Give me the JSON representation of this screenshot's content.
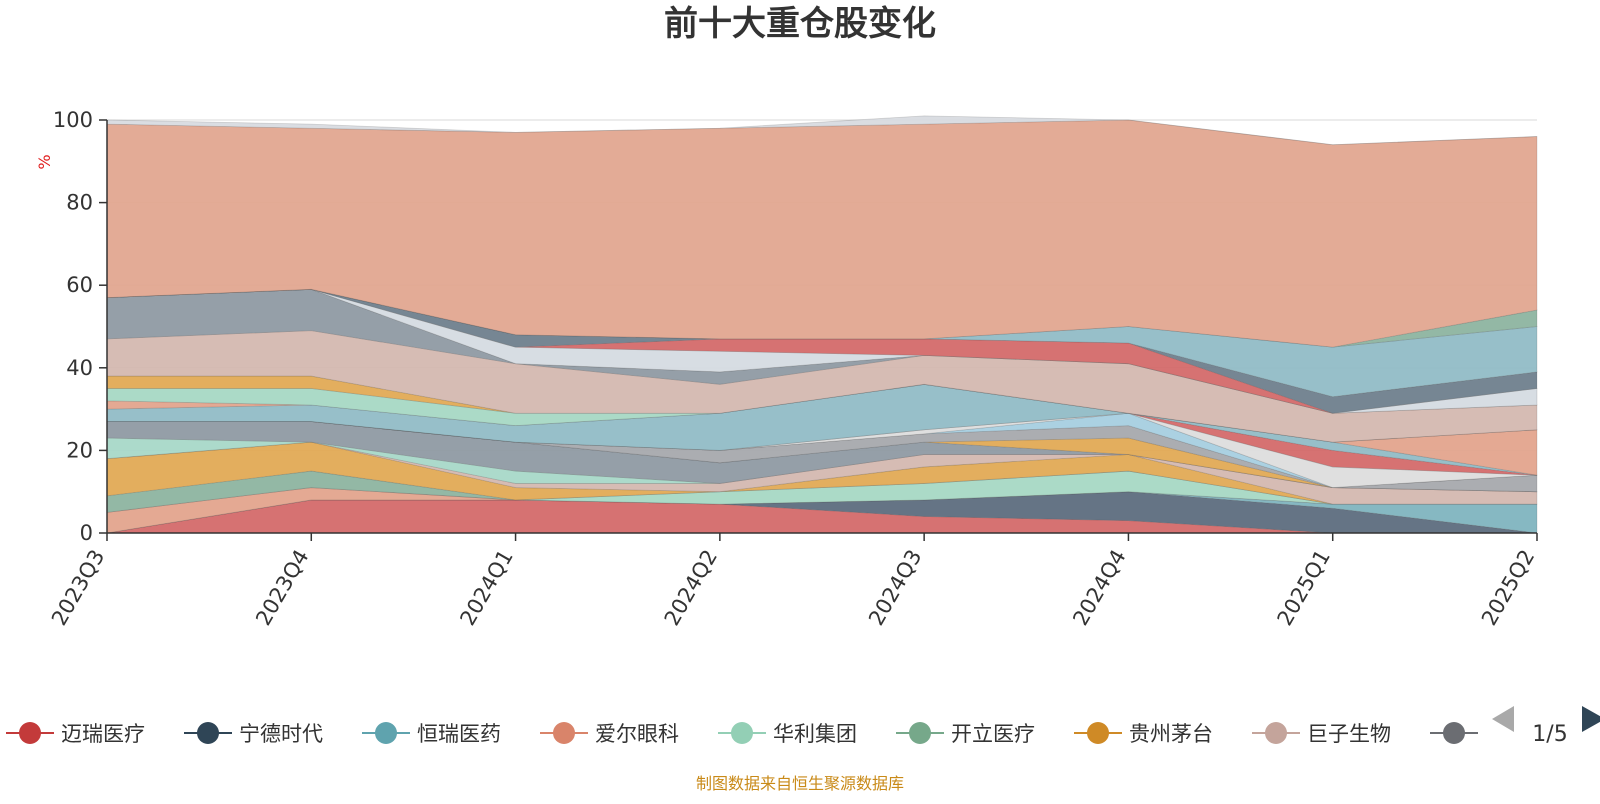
{
  "chart_data": {
    "type": "area",
    "title": "前十大重仓股变化",
    "ylabel": "%",
    "ylim": [
      0,
      100
    ],
    "yticks": [
      0,
      20,
      40,
      60,
      80,
      100
    ],
    "grid": true,
    "categories": [
      "2023Q3",
      "2023Q4",
      "2024Q1",
      "2024Q2",
      "2024Q3",
      "2024Q4",
      "2025Q1",
      "2025Q2"
    ],
    "series": [
      {
        "name": "迈瑞医疗",
        "color": "#d46a6a",
        "values": [
          0,
          8,
          8,
          7,
          4,
          3,
          0,
          0
        ]
      },
      {
        "name": "宁德时代",
        "color": "#5d6d7e",
        "values": [
          0,
          0,
          0,
          0,
          4,
          7,
          6,
          0
        ]
      },
      {
        "name": "恒瑞医药",
        "color": "#7fb4bf",
        "values": [
          0,
          0,
          0,
          0,
          0,
          0,
          1,
          7
        ]
      },
      {
        "name": "爱尔眼科",
        "color": "#e3a48d",
        "values": [
          5,
          3,
          0,
          0,
          0,
          0,
          0,
          0
        ]
      },
      {
        "name": "华利集团",
        "color": "#a7d8c4",
        "values": [
          0,
          0,
          0,
          3,
          4,
          5,
          0,
          0
        ]
      },
      {
        "name": "开立医疗",
        "color": "#8db4a0",
        "values": [
          4,
          4,
          0,
          0,
          0,
          0,
          0,
          0
        ]
      },
      {
        "name": "贵州茅台",
        "color": "#e2aa55",
        "values": [
          9,
          7,
          3,
          0,
          4,
          4,
          0,
          0
        ]
      },
      {
        "name": "巨子生物",
        "color": "#d4b8b0",
        "values": [
          0,
          0,
          1,
          2,
          3,
          0,
          4,
          3
        ]
      }
    ],
    "other_layers": [
      {
        "color": "#a8d8c8",
        "values": [
          5,
          0,
          3,
          0,
          0,
          0,
          0,
          0
        ]
      },
      {
        "color": "#8f9aa3",
        "values": [
          4,
          5,
          7,
          5,
          3,
          0,
          0,
          0
        ]
      },
      {
        "color": "#e2aa55",
        "values": [
          0,
          0,
          0,
          0,
          0,
          4,
          0,
          0
        ]
      },
      {
        "color": "#a6a9ad",
        "values": [
          0,
          0,
          0,
          3,
          2,
          3,
          0,
          4
        ]
      },
      {
        "color": "#a7cfe0",
        "values": [
          0,
          0,
          0,
          0,
          0,
          3,
          0,
          0
        ]
      },
      {
        "color": "#dddddd",
        "values": [
          0,
          0,
          0,
          0,
          1,
          0,
          5,
          0
        ]
      },
      {
        "color": "#d46a6a",
        "values": [
          0,
          0,
          0,
          0,
          0,
          0,
          4,
          0
        ]
      },
      {
        "color": "#91bcc6",
        "values": [
          3,
          4,
          4,
          9,
          11,
          0,
          2,
          0
        ]
      },
      {
        "color": "#e3a48d",
        "values": [
          2,
          0,
          0,
          0,
          0,
          0,
          0,
          11
        ]
      },
      {
        "color": "#a7d8c4",
        "values": [
          3,
          4,
          3,
          0,
          0,
          0,
          0,
          0
        ]
      },
      {
        "color": "#e2aa55",
        "values": [
          3,
          3,
          0,
          0,
          0,
          0,
          0,
          0
        ]
      },
      {
        "color": "#d4b8b0",
        "values": [
          9,
          11,
          12,
          7,
          7,
          12,
          7,
          6
        ]
      },
      {
        "color": "#8f9aa3",
        "values": [
          10,
          10,
          0,
          3,
          0,
          0,
          0,
          0
        ]
      },
      {
        "color": "#d5dbe2",
        "values": [
          0,
          0,
          4,
          5,
          0,
          0,
          0,
          4
        ]
      },
      {
        "color": "#d46a6a",
        "values": [
          0,
          0,
          0,
          3,
          4,
          5,
          0,
          0
        ]
      },
      {
        "color": "#6f7f8d",
        "values": [
          0,
          0,
          3,
          0,
          0,
          0,
          4,
          4
        ]
      },
      {
        "color": "#91bcc6",
        "values": [
          0,
          0,
          0,
          0,
          0,
          4,
          12,
          11
        ]
      },
      {
        "color": "#8db4a0",
        "values": [
          0,
          0,
          0,
          0,
          0,
          0,
          0,
          4
        ]
      },
      {
        "color": "#e1a690",
        "values": [
          42,
          39,
          49,
          51,
          52,
          50,
          49,
          42
        ]
      },
      {
        "color": "#d8dbe0",
        "values": [
          1,
          1,
          0,
          0,
          2,
          0,
          0,
          0
        ]
      }
    ],
    "legend_position": "bottom"
  },
  "legend": {
    "page_text": "1/5",
    "items": [
      {
        "name": "迈瑞医疗",
        "color": "#c33a3a"
      },
      {
        "name": "宁德时代",
        "color": "#2f4556"
      },
      {
        "name": "恒瑞医药",
        "color": "#5fa3ae"
      },
      {
        "name": "爱尔眼科",
        "color": "#d9846a"
      },
      {
        "name": "华利集团",
        "color": "#93cfb5"
      },
      {
        "name": "开立医疗",
        "color": "#76a88a"
      },
      {
        "name": "贵州茅台",
        "color": "#cf8a26"
      },
      {
        "name": "巨子生物",
        "color": "#c4a49b"
      },
      {
        "name": "",
        "color": "#6b6d72"
      }
    ]
  },
  "footer": {
    "source": "制图数据来自恒生聚源数据库"
  }
}
